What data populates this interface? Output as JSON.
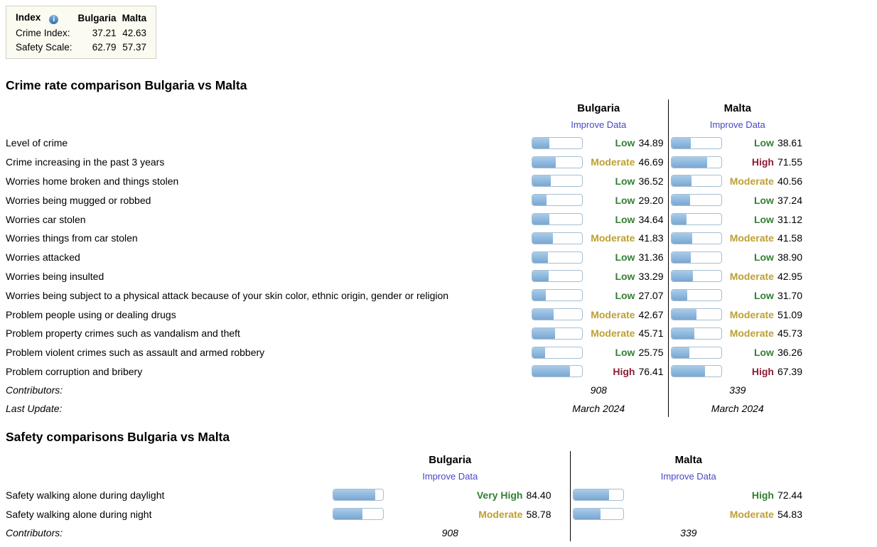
{
  "colors": {
    "good": "#338033",
    "moderate": "#bda032",
    "bad": "#8e1d35",
    "link": "#4747c4",
    "bar_fill": "#8db8de",
    "bar_border": "#a5bfd2",
    "divider": "#000000",
    "summary_bg": "#fbfbf2"
  },
  "icons": {
    "info": "i"
  },
  "summary": {
    "index_label": "Index",
    "countries": [
      "Bulgaria",
      "Malta"
    ],
    "rows": [
      {
        "label": "Crime Index:",
        "bulgaria": "37.21",
        "malta": "42.63"
      },
      {
        "label": "Safety Scale:",
        "bulgaria": "62.79",
        "malta": "57.37"
      }
    ]
  },
  "crime": {
    "title": "Crime rate comparison Bulgaria vs Malta",
    "countries": [
      "Bulgaria",
      "Malta"
    ],
    "improve_label": "Improve Data",
    "rows": [
      {
        "label": "Level of crime",
        "bulgaria": {
          "rating": "Low",
          "value": "34.89",
          "level": "good"
        },
        "malta": {
          "rating": "Low",
          "value": "38.61",
          "level": "good"
        }
      },
      {
        "label": "Crime increasing in the past 3 years",
        "bulgaria": {
          "rating": "Moderate",
          "value": "46.69",
          "level": "moderate"
        },
        "malta": {
          "rating": "High",
          "value": "71.55",
          "level": "bad"
        }
      },
      {
        "label": "Worries home broken and things stolen",
        "bulgaria": {
          "rating": "Low",
          "value": "36.52",
          "level": "good"
        },
        "malta": {
          "rating": "Moderate",
          "value": "40.56",
          "level": "moderate"
        }
      },
      {
        "label": "Worries being mugged or robbed",
        "bulgaria": {
          "rating": "Low",
          "value": "29.20",
          "level": "good"
        },
        "malta": {
          "rating": "Low",
          "value": "37.24",
          "level": "good"
        }
      },
      {
        "label": "Worries car stolen",
        "bulgaria": {
          "rating": "Low",
          "value": "34.64",
          "level": "good"
        },
        "malta": {
          "rating": "Low",
          "value": "31.12",
          "level": "good"
        }
      },
      {
        "label": "Worries things from car stolen",
        "bulgaria": {
          "rating": "Moderate",
          "value": "41.83",
          "level": "moderate"
        },
        "malta": {
          "rating": "Moderate",
          "value": "41.58",
          "level": "moderate"
        }
      },
      {
        "label": "Worries attacked",
        "bulgaria": {
          "rating": "Low",
          "value": "31.36",
          "level": "good"
        },
        "malta": {
          "rating": "Low",
          "value": "38.90",
          "level": "good"
        }
      },
      {
        "label": "Worries being insulted",
        "bulgaria": {
          "rating": "Low",
          "value": "33.29",
          "level": "good"
        },
        "malta": {
          "rating": "Moderate",
          "value": "42.95",
          "level": "moderate"
        }
      },
      {
        "label": "Worries being subject to a physical attack because of your skin color, ethnic origin, gender or religion",
        "bulgaria": {
          "rating": "Low",
          "value": "27.07",
          "level": "good"
        },
        "malta": {
          "rating": "Low",
          "value": "31.70",
          "level": "good"
        }
      },
      {
        "label": "Problem people using or dealing drugs",
        "bulgaria": {
          "rating": "Moderate",
          "value": "42.67",
          "level": "moderate"
        },
        "malta": {
          "rating": "Moderate",
          "value": "51.09",
          "level": "moderate"
        }
      },
      {
        "label": "Problem property crimes such as vandalism and theft",
        "bulgaria": {
          "rating": "Moderate",
          "value": "45.71",
          "level": "moderate"
        },
        "malta": {
          "rating": "Moderate",
          "value": "45.73",
          "level": "moderate"
        }
      },
      {
        "label": "Problem violent crimes such as assault and armed robbery",
        "bulgaria": {
          "rating": "Low",
          "value": "25.75",
          "level": "good"
        },
        "malta": {
          "rating": "Low",
          "value": "36.26",
          "level": "good"
        }
      },
      {
        "label": "Problem corruption and bribery",
        "bulgaria": {
          "rating": "High",
          "value": "76.41",
          "level": "bad"
        },
        "malta": {
          "rating": "High",
          "value": "67.39",
          "level": "bad"
        }
      }
    ],
    "contributors_label": "Contributors:",
    "contributors": [
      "908",
      "339"
    ],
    "last_update_label": "Last Update:",
    "last_update": [
      "March 2024",
      "March 2024"
    ]
  },
  "safety": {
    "title": "Safety comparisons Bulgaria vs Malta",
    "countries": [
      "Bulgaria",
      "Malta"
    ],
    "improve_label": "Improve Data",
    "rows": [
      {
        "label": "Safety walking alone during daylight",
        "bulgaria": {
          "rating": "Very High",
          "value": "84.40",
          "level": "good"
        },
        "malta": {
          "rating": "High",
          "value": "72.44",
          "level": "good"
        }
      },
      {
        "label": "Safety walking alone during night",
        "bulgaria": {
          "rating": "Moderate",
          "value": "58.78",
          "level": "moderate"
        },
        "malta": {
          "rating": "Moderate",
          "value": "54.83",
          "level": "moderate"
        }
      }
    ],
    "contributors_label": "Contributors:",
    "contributors": [
      "908",
      "339"
    ]
  }
}
